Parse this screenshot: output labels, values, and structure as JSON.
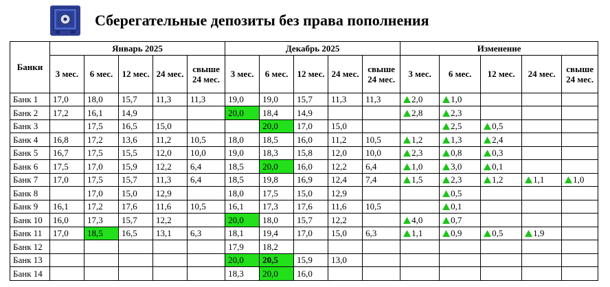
{
  "header": {
    "title": "Сберегательные депозиты без права пополнения"
  },
  "table": {
    "corner": "Банки",
    "groups": [
      {
        "label": "Январь 2025",
        "columns": [
          "3 мес.",
          "6 мес.",
          "12 мес.",
          "24 мес.",
          "свыше 24 мес."
        ]
      },
      {
        "label": "Декабрь 2025",
        "columns": [
          "3 мес.",
          "6 мес.",
          "12 мес.",
          "24 мес.",
          "свыше 24 мес."
        ]
      },
      {
        "label": "Изменение",
        "columns": [
          "3 мес.",
          "6 мес.",
          "12 мес.",
          "24 мес.",
          "свыше 24 мес."
        ],
        "change": true
      }
    ],
    "rows": [
      {
        "bank": "Банк 1",
        "cells": [
          "17,0",
          "18,0",
          "15,7",
          "11,3",
          "11,3",
          "19,0",
          "19,0",
          "15,7",
          "11,3",
          "11,3",
          "2,0",
          "1,0",
          null,
          null,
          null
        ]
      },
      {
        "bank": "Банк 2",
        "cells": [
          "17,2",
          "16,1",
          "14,9",
          null,
          null,
          {
            "text": "20,0",
            "highlight": true
          },
          "18,4",
          "14,9",
          null,
          null,
          "2,8",
          "2,3",
          null,
          null,
          null
        ]
      },
      {
        "bank": "Банк 3",
        "cells": [
          null,
          "17,5",
          "16,5",
          "15,0",
          null,
          null,
          {
            "text": "20,0",
            "highlight": true
          },
          "17,0",
          "15,0",
          null,
          null,
          "2,5",
          "0,5",
          null,
          null
        ]
      },
      {
        "bank": "Банк 4",
        "cells": [
          "16,8",
          "17,2",
          "13,6",
          "11,2",
          "10,5",
          "18,0",
          "18,5",
          "16,0",
          "11,2",
          "10,5",
          "1,2",
          "1,3",
          "2,4",
          null,
          null
        ]
      },
      {
        "bank": "Банк 5",
        "cells": [
          "16,7",
          "17,5",
          "15,5",
          "12,0",
          "10,0",
          "19,0",
          "18,3",
          "15,8",
          "12,0",
          "10,0",
          "2,3",
          "0,8",
          "0,3",
          null,
          null
        ]
      },
      {
        "bank": "Банк 6",
        "cells": [
          "17,5",
          "17,0",
          "15,9",
          "12,2",
          "6,4",
          "18,5",
          {
            "text": "20,0",
            "highlight": true
          },
          "16,0",
          "12,2",
          "6,4",
          "1,0",
          "3,0",
          "0,1",
          null,
          null
        ]
      },
      {
        "bank": "Банк 7",
        "cells": [
          "17,0",
          "17,5",
          "15,7",
          "11,3",
          "6,4",
          "18,5",
          "19,8",
          "16,9",
          "12,4",
          "7,4",
          "1,5",
          "2,3",
          "1,2",
          "1,1",
          "1,0"
        ]
      },
      {
        "bank": "Банк 8",
        "cells": [
          null,
          "17,0",
          "15,0",
          "12,9",
          null,
          "18,0",
          "17,5",
          "15,0",
          "12,9",
          null,
          null,
          "0,5",
          null,
          null,
          null
        ]
      },
      {
        "bank": "Банк 9",
        "cells": [
          "16,1",
          "17,2",
          "17,6",
          "11,6",
          "10,5",
          "16,1",
          "17,3",
          "17,6",
          "11,6",
          "10,5",
          null,
          "0,1",
          null,
          null,
          null
        ]
      },
      {
        "bank": "Банк 10",
        "cells": [
          "16,0",
          "17,3",
          "15,7",
          "12,2",
          null,
          {
            "text": "20,0",
            "highlight": true
          },
          "18,0",
          "15,7",
          "12,2",
          null,
          "4,0",
          "0,7",
          null,
          null,
          null
        ]
      },
      {
        "bank": "Банк 11",
        "cells": [
          "17,0",
          {
            "text": "18,5",
            "highlight": true
          },
          "16,5",
          "13,1",
          "6,3",
          "18,1",
          "19,4",
          "17,0",
          "15,0",
          "6,3",
          "1,1",
          "0,9",
          "0,5",
          "1,9",
          null
        ]
      },
      {
        "bank": "Банк 12",
        "cells": [
          null,
          null,
          null,
          null,
          null,
          "17,9",
          "18,2",
          null,
          null,
          null,
          null,
          null,
          null,
          null,
          null
        ]
      },
      {
        "bank": "Банк 13",
        "cells": [
          null,
          null,
          null,
          null,
          null,
          {
            "text": "20,0",
            "highlight": true
          },
          {
            "text": "20,5",
            "highlight": true,
            "bold": true
          },
          "15,9",
          "13,0",
          null,
          null,
          null,
          null,
          null,
          null
        ]
      },
      {
        "bank": "Банк 14",
        "cells": [
          null,
          null,
          null,
          null,
          null,
          "18,3",
          {
            "text": "20,0",
            "highlight": true
          },
          "16,0",
          null,
          null,
          null,
          null,
          null,
          null,
          null
        ]
      }
    ]
  }
}
